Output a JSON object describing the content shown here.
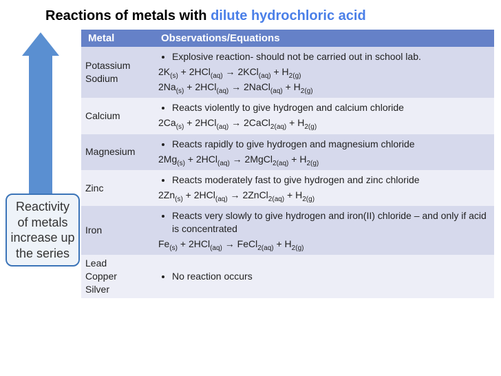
{
  "title_prefix": "Reactions of metals with ",
  "title_accent": "dilute hydrochloric acid",
  "accent_color": "#4a7fe8",
  "side_label": "Reactivity of metals increase up the series",
  "arrow_color": "#5a8fd1",
  "label_border_color": "#3b74b8",
  "label_bg_color": "#eef3f9",
  "header_bg": "#6581c8",
  "band_a_bg": "#d6d9ec",
  "band_b_bg": "#edeef7",
  "columns": [
    "Metal",
    "Observations/Equations"
  ],
  "rows": [
    {
      "band": "a",
      "metal_lines": [
        "Potassium",
        "Sodium"
      ],
      "bullets": [
        "Explosive reaction- should not be carried out in school lab."
      ],
      "equations": [
        [
          [
            "2K"
          ],
          [
            "(s)"
          ],
          [
            " +  2HCl"
          ],
          [
            "(aq)"
          ],
          [
            " →   2KCl"
          ],
          [
            "(aq)"
          ],
          [
            " + H"
          ],
          [
            "2(g)"
          ]
        ],
        [
          [
            "2Na"
          ],
          [
            "(s)"
          ],
          [
            " +  2HCl"
          ],
          [
            "(aq)"
          ],
          [
            " →   2NaCl"
          ],
          [
            "(aq)"
          ],
          [
            " + H"
          ],
          [
            "2(g)"
          ]
        ]
      ]
    },
    {
      "band": "b",
      "metal_lines": [
        "Calcium"
      ],
      "bullets": [
        "Reacts violently to give hydrogen and calcium chloride"
      ],
      "equations": [
        [
          [
            "2Ca"
          ],
          [
            "(s)"
          ],
          [
            " +  2HCl"
          ],
          [
            "(aq)"
          ],
          [
            " →   2CaCl"
          ],
          [
            "2(aq)"
          ],
          [
            " + H"
          ],
          [
            "2(g)"
          ]
        ]
      ]
    },
    {
      "band": "a",
      "metal_lines": [
        "Magnesium"
      ],
      "bullets": [
        "Reacts rapidly to give hydrogen and magnesium chloride"
      ],
      "equations": [
        [
          [
            "2Mg"
          ],
          [
            "(s)"
          ],
          [
            " +  2HCl"
          ],
          [
            "(aq)"
          ],
          [
            " →   2MgCl"
          ],
          [
            "2(aq)"
          ],
          [
            " + H"
          ],
          [
            "2(g)"
          ]
        ]
      ]
    },
    {
      "band": "b",
      "metal_lines": [
        "Zinc"
      ],
      "bullets": [
        "Reacts moderately fast to give hydrogen and zinc chloride"
      ],
      "equations": [
        [
          [
            "2Zn"
          ],
          [
            "(s)"
          ],
          [
            " +  2HCl"
          ],
          [
            "(aq)"
          ],
          [
            " →   2ZnCl"
          ],
          [
            "2(aq)"
          ],
          [
            " + H"
          ],
          [
            "2(g)"
          ]
        ]
      ]
    },
    {
      "band": "a",
      "metal_lines": [
        "Iron"
      ],
      "bullets": [
        "Reacts very slowly to give hydrogen and iron(II) chloride – and only if acid is concentrated"
      ],
      "equations": [
        [
          [
            "Fe"
          ],
          [
            "(s)"
          ],
          [
            " +  2HCl"
          ],
          [
            "(aq)"
          ],
          [
            " →   FeCl"
          ],
          [
            "2(aq)"
          ],
          [
            " + H"
          ],
          [
            "2(g)"
          ]
        ]
      ]
    },
    {
      "band": "b",
      "metal_lines": [
        "Lead",
        "Copper",
        "Silver"
      ],
      "bullets": [
        "No reaction occurs"
      ],
      "equations": []
    }
  ]
}
